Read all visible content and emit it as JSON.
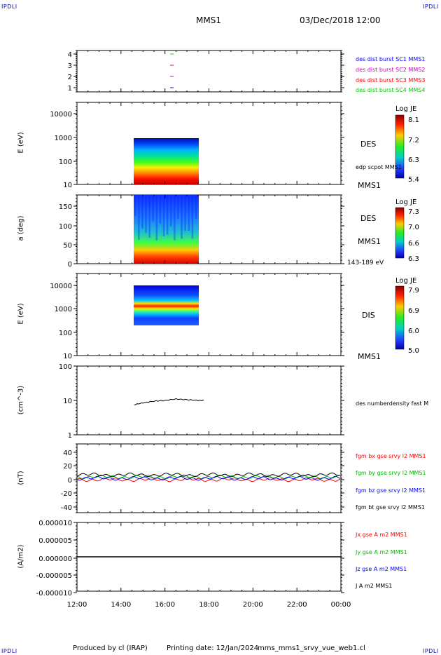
{
  "header": {
    "corner_tl": "IPDLI",
    "corner_tr": "IPDLI",
    "corner_bl": "IPDLI",
    "corner_br": "IPDLI",
    "spacecraft": "MMS1",
    "datetime": "03/Dec/2018 12:00"
  },
  "footer": {
    "produced_by": "Produced by cl (IRAP)",
    "printing_date": "Printing date: 12/Jan/2024",
    "file": "mms_mms1_srvy_vue_web1.cl"
  },
  "x_axis": {
    "ticks": [
      "12:00",
      "14:00",
      "16:00",
      "18:00",
      "20:00",
      "22:00",
      "00:00"
    ]
  },
  "panels": {
    "availability": {
      "y_ticks": [
        "4",
        "3",
        "2",
        "1"
      ],
      "legend": [
        {
          "text": "des dist burst SC1 MMS1",
          "color": "#0000ff"
        },
        {
          "text": "des dist burst SC2 MMS2",
          "color": "#cc00cc"
        },
        {
          "text": "des dist burst SC3 MMS3",
          "color": "#ff0000"
        },
        {
          "text": "des dist burst SC4 MMS4",
          "color": "#00cc00"
        }
      ]
    },
    "des_energy": {
      "ylabel": "E (eV)",
      "y_ticks": [
        "10000",
        "1000",
        "100",
        "10"
      ],
      "side_label": "DES",
      "side_label2": "edp scpot MMS1",
      "side_label3": "MMS1",
      "cbar_title": "Log JE",
      "cbar_ticks": [
        "8.1",
        "7.2",
        "6.3",
        "5.4"
      ]
    },
    "des_pitch": {
      "ylabel": "a (deg)",
      "y_ticks": [
        "150",
        "100",
        "50",
        "0"
      ],
      "side_label": "DES",
      "side_label2": "MMS1",
      "side_label3": "143-189 eV",
      "cbar_title": "Log JE",
      "cbar_ticks": [
        "7.3",
        "7.0",
        "6.6",
        "6.3"
      ]
    },
    "dis_energy": {
      "ylabel": "E (eV)",
      "y_ticks": [
        "10000",
        "1000",
        "100",
        "10"
      ],
      "side_label": "DIS",
      "side_label3": "MMS1",
      "cbar_title": "Log JE",
      "cbar_ticks": [
        "7.9",
        "6.9",
        "6.0",
        "5.0"
      ]
    },
    "density": {
      "ylabel": "(cm^-3)",
      "y_ticks": [
        "100",
        "10",
        "1"
      ],
      "legend": "des numberdensity fast M"
    },
    "bfield": {
      "ylabel": "(nT)",
      "y_ticks": [
        "40",
        "20",
        "0",
        "-20",
        "-40"
      ],
      "legend": [
        {
          "text": "fgm bx gse srvy l2 MMS1",
          "color": "#ff0000"
        },
        {
          "text": "fgm by gse srvy l2 MMS1",
          "color": "#00bb00"
        },
        {
          "text": "fgm bz gse srvy l2 MMS1",
          "color": "#0000ff"
        },
        {
          "text": "fgm bt gse srvy l2 MMS1",
          "color": "#000000"
        }
      ]
    },
    "current": {
      "ylabel": "(A/m2)",
      "y_ticks": [
        "0.000010",
        "0.000005",
        "0.000000",
        "-0.000005",
        "-0.000010"
      ],
      "legend": [
        {
          "text": "Jx gse A m2 MMS1",
          "color": "#ff0000"
        },
        {
          "text": "Jy gse A m2 MMS1",
          "color": "#00bb00"
        },
        {
          "text": "Jz gse A m2 MMS1",
          "color": "#0000ff"
        },
        {
          "text": "J A m2 MMS1",
          "color": "#000000"
        }
      ]
    }
  },
  "chart_data": {
    "type": "line",
    "x_range": [
      "12:00",
      "00:00"
    ],
    "density": {
      "x": [
        "14:36",
        "15:00",
        "15:30",
        "16:00",
        "16:30",
        "17:00",
        "17:30"
      ],
      "values": [
        7.5,
        8.5,
        9.5,
        10,
        11,
        10.5,
        10
      ],
      "ylim": [
        1,
        100
      ],
      "log": true
    },
    "bfield": {
      "ylim": [
        -50,
        50
      ],
      "series": [
        {
          "name": "fgm bx gse srvy l2 MMS1",
          "level": -2
        },
        {
          "name": "fgm by gse srvy l2 MMS1",
          "level": 2
        },
        {
          "name": "fgm bz gse srvy l2 MMS1",
          "level": 0
        },
        {
          "name": "fgm bt gse srvy l2 MMS1",
          "level": 5
        }
      ]
    },
    "current": {
      "ylim": [
        -1e-05,
        1e-05
      ],
      "values": [
        0.0,
        0.0
      ]
    },
    "spectrogram_interval": [
      "14:36",
      "17:36"
    ]
  }
}
